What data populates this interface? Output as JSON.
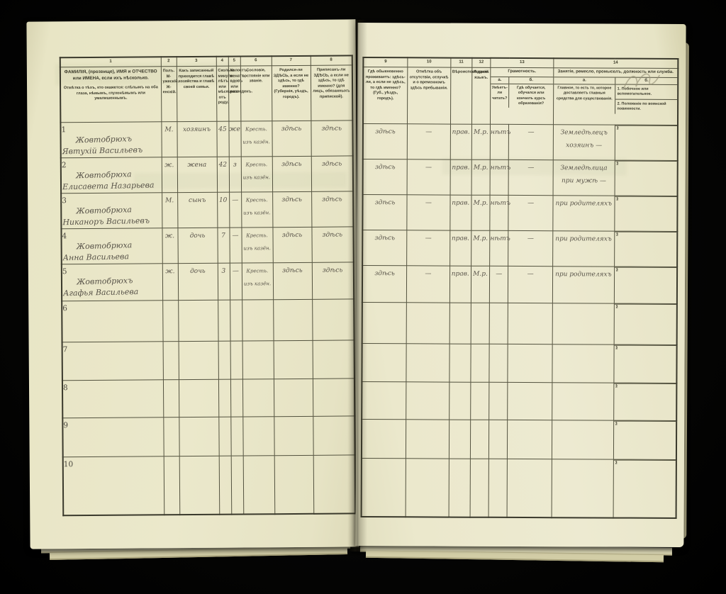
{
  "colors": {
    "background": "#000000",
    "paper": "#ebe8cb",
    "rule": "#53523f",
    "printed_ink": "#3a392a",
    "handwriting_ink": "#585349",
    "pencil": "#938e74"
  },
  "left_page": {
    "col_numbers": [
      "1",
      "2",
      "3",
      "4",
      "5",
      "6",
      "7",
      "8"
    ],
    "headers": {
      "c1a": "ФАМИЛІЯ, (прозвище), ИМЯ и ОТЧЕСТВО или ИМЕНА, если ихъ нѣсколько.",
      "c1b": "Отмѣтка о тѣхъ, кто окажется: слѣпымъ на оба глаза, нѣмымъ, глухонѣмымъ или умалишеннымъ.",
      "c2": "Полъ. М-ужескій. Ж-енскій.",
      "c3": "Какъ записанный приходится главѣ хозяйства и главѣ своей семьи.",
      "c4": "Сколько минуло лѣтъ или мѣсяцевъ отъ роду.",
      "c5": "Холостъ, женатъ, вдовъ или разведенъ.",
      "c6": "Сословіе, состояніе или званіе.",
      "c7": "Родился-ли ЗДѢСЬ, а если не здѣсь, то гдѣ именно? (Губернія, уѣздъ, городъ).",
      "c8": "Приписанъ-ли ЗДѢСЬ, а если не здѣсь, то гдѣ именно? (для лицъ, обязанныхъ припиской)."
    }
  },
  "right_page": {
    "col_numbers": [
      "9",
      "10",
      "11",
      "12",
      "13",
      "14"
    ],
    "headers": {
      "c9": "Гдѣ обыкновенно проживаетъ: здѣсь-ли, а если не здѣсь, то гдѣ именно? (Губ., уѣздъ, городъ).",
      "c10": "Отмѣтка объ отсутствіи, отлучкѣ и о временномъ здѣсь пребываніи.",
      "c11": "Вѣроисповѣданіе.",
      "c12": "Родной языкъ.",
      "c13_title": "Грамотность.",
      "c13a_letter": "а.",
      "c13a": "Умѣетъ-ли читать?",
      "c13b_letter": "б.",
      "c13b": "Гдѣ обучается, обучался или кончилъ курсъ образованія?",
      "c14_title": "Занятіе, ремесло, промыселъ, должность или служба.",
      "c14a_letter": "а.",
      "c14a": "Главное, то есть то, которое доставляетъ главныя средства для существованія.",
      "c14b_letter": "б.",
      "c14b_item1": "1. Побочное или вспомогательное.",
      "c14b_item2": "2. Положеніе по воинской повинности."
    },
    "sub_row_markers": [
      "1",
      "2"
    ]
  },
  "rows": [
    {
      "no": "1",
      "surname": "Жовтобрюхъ",
      "given": "Явтухій Васильевъ",
      "sex": "М.",
      "relation": "хозяинъ",
      "age": "45",
      "marital": "же",
      "estate": "Кресть. изъ казён.",
      "born": "здѣсь",
      "registered": "здѣсь",
      "resides": "здѣсь",
      "absence": "—",
      "faith": "прав.",
      "language": "М.р.",
      "reads": "нѣтъ",
      "educated": "—",
      "occupation": "Земледѣлецъ хозяинъ —"
    },
    {
      "no": "2",
      "surname": "Жовтобрюха",
      "given": "Елисавета Назарьева",
      "sex": "ж.",
      "relation": "жена",
      "age": "42",
      "marital": "з",
      "estate": "Кресть. изъ казён.",
      "born": "здѣсь",
      "registered": "здѣсь",
      "resides": "здѣсь",
      "absence": "—",
      "faith": "прав.",
      "language": "М.р.",
      "reads": "нѣтъ",
      "educated": "—",
      "occupation": "Земледѣлица при мужѣ —"
    },
    {
      "no": "3",
      "surname": "Жовтобрюха",
      "given": "Никаноръ Васильевъ",
      "sex": "М.",
      "relation": "сынъ",
      "age": "10",
      "marital": "—",
      "estate": "Кресть. изъ казён.",
      "born": "здѣсь",
      "registered": "здѣсь",
      "resides": "здѣсь",
      "absence": "—",
      "faith": "прав.",
      "language": "М.р.",
      "reads": "нѣтъ",
      "educated": "—",
      "occupation": "при родителяхъ"
    },
    {
      "no": "4",
      "surname": "Жовтобрюха",
      "given": "Анна Васильева",
      "sex": "ж.",
      "relation": "дочь",
      "age": "7",
      "marital": "—",
      "estate": "Кресть. изъ казён.",
      "born": "здѣсь",
      "registered": "здѣсь",
      "resides": "здѣсь",
      "absence": "—",
      "faith": "прав.",
      "language": "М.р.",
      "reads": "нѣтъ",
      "educated": "—",
      "occupation": "при родителяхъ"
    },
    {
      "no": "5",
      "surname": "Жовтобрюхъ",
      "given": "Агафья Васильева",
      "sex": "ж.",
      "relation": "дочь",
      "age": "3",
      "marital": "—",
      "estate": "Кресть. изъ казён.",
      "born": "здѣсь",
      "registered": "здѣсь",
      "resides": "здѣсь",
      "absence": "—",
      "faith": "прав.",
      "language": "М.р.",
      "reads": "—",
      "educated": "—",
      "occupation": "при родителяхъ"
    },
    {
      "no": "6",
      "surname": "",
      "given": "",
      "sex": "",
      "relation": "",
      "age": "",
      "marital": "",
      "estate": "",
      "born": "",
      "registered": "",
      "resides": "",
      "absence": "",
      "faith": "",
      "language": "",
      "reads": "",
      "educated": "",
      "occupation": ""
    },
    {
      "no": "7",
      "surname": "",
      "given": "",
      "sex": "",
      "relation": "",
      "age": "",
      "marital": "",
      "estate": "",
      "born": "",
      "registered": "",
      "resides": "",
      "absence": "",
      "faith": "",
      "language": "",
      "reads": "",
      "educated": "",
      "occupation": ""
    },
    {
      "no": "8",
      "surname": "",
      "given": "",
      "sex": "",
      "relation": "",
      "age": "",
      "marital": "",
      "estate": "",
      "born": "",
      "registered": "",
      "resides": "",
      "absence": "",
      "faith": "",
      "language": "",
      "reads": "",
      "educated": "",
      "occupation": ""
    },
    {
      "no": "9",
      "surname": "",
      "given": "",
      "sex": "",
      "relation": "",
      "age": "",
      "marital": "",
      "estate": "",
      "born": "",
      "registered": "",
      "resides": "",
      "absence": "",
      "faith": "",
      "language": "",
      "reads": "",
      "educated": "",
      "occupation": ""
    },
    {
      "no": "10",
      "surname": "",
      "given": "",
      "sex": "",
      "relation": "",
      "age": "",
      "marital": "",
      "estate": "",
      "born": "",
      "registered": "",
      "resides": "",
      "absence": "",
      "faith": "",
      "language": "",
      "reads": "",
      "educated": "",
      "occupation": ""
    }
  ]
}
